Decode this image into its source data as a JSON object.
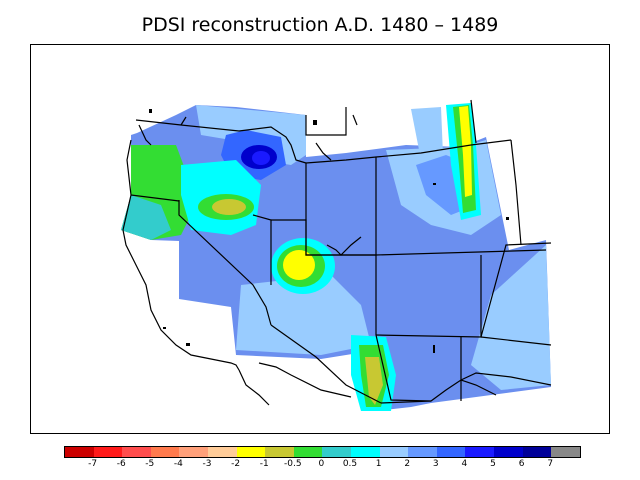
{
  "title": "PDSI reconstruction A.D. 1480 – 1489",
  "legend": {
    "colors": [
      "#cc0000",
      "#ff1a1a",
      "#ff4d4d",
      "#ff7a4d",
      "#ffa07a",
      "#ffcc99",
      "#ffff00",
      "#c8c832",
      "#33dd33",
      "#33cccc",
      "#00ffff",
      "#99ccff",
      "#6699ff",
      "#3366ff",
      "#1a1aff",
      "#0000cc",
      "#000099",
      "#888888"
    ],
    "labels": [
      "-7",
      "-6",
      "-5",
      "-4",
      "-3",
      "-2",
      "-1",
      "-0.5",
      "0",
      "0.5",
      "1",
      "2",
      "3",
      "4",
      "5",
      "6",
      "7"
    ]
  },
  "map": {
    "background_color": "#6b8fef",
    "features": [
      {
        "name": "dry-spot-north-nevada",
        "color": "#c8c832"
      },
      {
        "name": "dry-spot-utah-center",
        "color": "#ffff00"
      },
      {
        "name": "dry-band-east-montana",
        "color": "#ffff00"
      },
      {
        "name": "dry-spot-south-arizona",
        "color": "#c8c832"
      },
      {
        "name": "wet-core-idaho",
        "color": "#0000cc"
      }
    ]
  }
}
